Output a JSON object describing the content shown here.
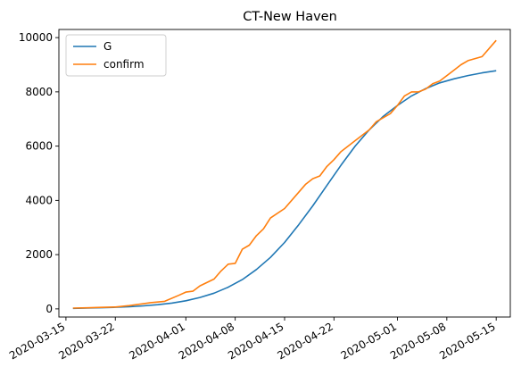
{
  "chart_data": {
    "type": "line",
    "title": "CT-New Haven",
    "xlabel": "",
    "ylabel": "",
    "grid": false,
    "legend_position": "top-left",
    "xlim": [
      "2020-03-14",
      "2020-05-17"
    ],
    "ylim": [
      -300,
      10300
    ],
    "x_ticks": [
      "2020-03-15",
      "2020-03-22",
      "2020-04-01",
      "2020-04-08",
      "2020-04-15",
      "2020-04-22",
      "2020-05-01",
      "2020-05-08",
      "2020-05-15"
    ],
    "y_ticks": [
      0,
      2000,
      4000,
      6000,
      8000,
      10000
    ],
    "series": [
      {
        "name": "G",
        "color": "#1f77b4",
        "x": [
          "2020-03-16",
          "2020-03-18",
          "2020-03-20",
          "2020-03-22",
          "2020-03-24",
          "2020-03-26",
          "2020-03-28",
          "2020-03-30",
          "2020-04-01",
          "2020-04-03",
          "2020-04-05",
          "2020-04-07",
          "2020-04-09",
          "2020-04-11",
          "2020-04-13",
          "2020-04-15",
          "2020-04-17",
          "2020-04-19",
          "2020-04-21",
          "2020-04-23",
          "2020-04-25",
          "2020-04-27",
          "2020-04-29",
          "2020-05-01",
          "2020-05-03",
          "2020-05-05",
          "2020-05-07",
          "2020-05-09",
          "2020-05-11",
          "2020-05-13",
          "2020-05-15"
        ],
        "y": [
          20,
          30,
          42,
          58,
          80,
          110,
          155,
          215,
          300,
          420,
          580,
          800,
          1080,
          1450,
          1900,
          2450,
          3100,
          3800,
          4550,
          5300,
          6000,
          6600,
          7100,
          7500,
          7850,
          8120,
          8330,
          8480,
          8600,
          8700,
          8780
        ]
      },
      {
        "name": "confirm",
        "color": "#ff7f0e",
        "x": [
          "2020-03-16",
          "2020-03-18",
          "2020-03-20",
          "2020-03-22",
          "2020-03-24",
          "2020-03-26",
          "2020-03-27",
          "2020-03-29",
          "2020-03-31",
          "2020-04-01",
          "2020-04-02",
          "2020-04-03",
          "2020-04-05",
          "2020-04-06",
          "2020-04-07",
          "2020-04-08",
          "2020-04-09",
          "2020-04-10",
          "2020-04-11",
          "2020-04-12",
          "2020-04-13",
          "2020-04-15",
          "2020-04-17",
          "2020-04-18",
          "2020-04-19",
          "2020-04-20",
          "2020-04-21",
          "2020-04-22",
          "2020-04-23",
          "2020-04-25",
          "2020-04-27",
          "2020-04-28",
          "2020-04-30",
          "2020-05-01",
          "2020-05-02",
          "2020-05-03",
          "2020-05-04",
          "2020-05-05",
          "2020-05-06",
          "2020-05-07",
          "2020-05-09",
          "2020-05-10",
          "2020-05-11",
          "2020-05-13",
          "2020-05-15"
        ],
        "y": [
          30,
          40,
          55,
          70,
          120,
          190,
          230,
          280,
          500,
          620,
          650,
          850,
          1100,
          1400,
          1650,
          1680,
          2200,
          2350,
          2700,
          2950,
          3350,
          3700,
          4300,
          4600,
          4800,
          4900,
          5250,
          5500,
          5800,
          6200,
          6600,
          6900,
          7200,
          7500,
          7850,
          8000,
          8000,
          8100,
          8300,
          8400,
          8800,
          9000,
          9150,
          9300,
          9900
        ]
      }
    ]
  }
}
